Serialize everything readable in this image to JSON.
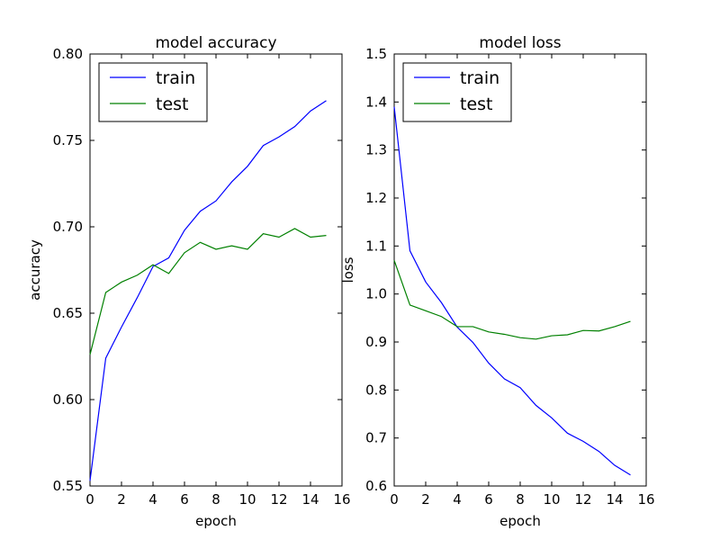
{
  "chart_data": [
    {
      "type": "line",
      "title": "model accuracy",
      "xlabel": "epoch",
      "ylabel": "accuracy",
      "xlim": [
        0,
        16
      ],
      "ylim": [
        0.55,
        0.8
      ],
      "xticks": [
        0,
        2,
        4,
        6,
        8,
        10,
        12,
        14,
        16
      ],
      "yticks": [
        0.55,
        0.6,
        0.65,
        0.7,
        0.75,
        0.8
      ],
      "ytick_labels": [
        "0.55",
        "0.60",
        "0.65",
        "0.70",
        "0.75",
        "0.80"
      ],
      "grid": false,
      "legend_position": "top-left",
      "x": [
        0,
        1,
        2,
        3,
        4,
        5,
        6,
        7,
        8,
        9,
        10,
        11,
        12,
        13,
        14,
        15
      ],
      "series": [
        {
          "name": "train",
          "color": "#0000ff",
          "values": [
            0.553,
            0.624,
            0.642,
            0.659,
            0.677,
            0.682,
            0.698,
            0.709,
            0.715,
            0.726,
            0.735,
            0.747,
            0.752,
            0.758,
            0.767,
            0.773
          ]
        },
        {
          "name": "test",
          "color": "#008000",
          "values": [
            0.626,
            0.662,
            0.668,
            0.672,
            0.678,
            0.673,
            0.685,
            0.691,
            0.687,
            0.689,
            0.687,
            0.696,
            0.694,
            0.699,
            0.694,
            0.695
          ]
        }
      ]
    },
    {
      "type": "line",
      "title": "model loss",
      "xlabel": "epoch",
      "ylabel": "loss",
      "xlim": [
        0,
        16
      ],
      "ylim": [
        0.6,
        1.5
      ],
      "xticks": [
        0,
        2,
        4,
        6,
        8,
        10,
        12,
        14,
        16
      ],
      "yticks": [
        0.6,
        0.7,
        0.8,
        0.9,
        1.0,
        1.1,
        1.2,
        1.3,
        1.4,
        1.5
      ],
      "ytick_labels": [
        "0.6",
        "0.7",
        "0.8",
        "0.9",
        "1.0",
        "1.1",
        "1.2",
        "1.3",
        "1.4",
        "1.5"
      ],
      "grid": false,
      "legend_position": "top-left",
      "x": [
        0,
        1,
        2,
        3,
        4,
        5,
        6,
        7,
        8,
        9,
        10,
        11,
        12,
        13,
        14,
        15
      ],
      "series": [
        {
          "name": "train",
          "color": "#0000ff",
          "values": [
            1.39,
            1.09,
            1.025,
            0.982,
            0.931,
            0.899,
            0.856,
            0.823,
            0.805,
            0.768,
            0.742,
            0.71,
            0.693,
            0.672,
            0.643,
            0.623
          ]
        },
        {
          "name": "test",
          "color": "#008000",
          "values": [
            1.07,
            0.977,
            0.965,
            0.953,
            0.932,
            0.932,
            0.921,
            0.916,
            0.909,
            0.906,
            0.913,
            0.915,
            0.924,
            0.923,
            0.932,
            0.943
          ]
        }
      ]
    }
  ]
}
